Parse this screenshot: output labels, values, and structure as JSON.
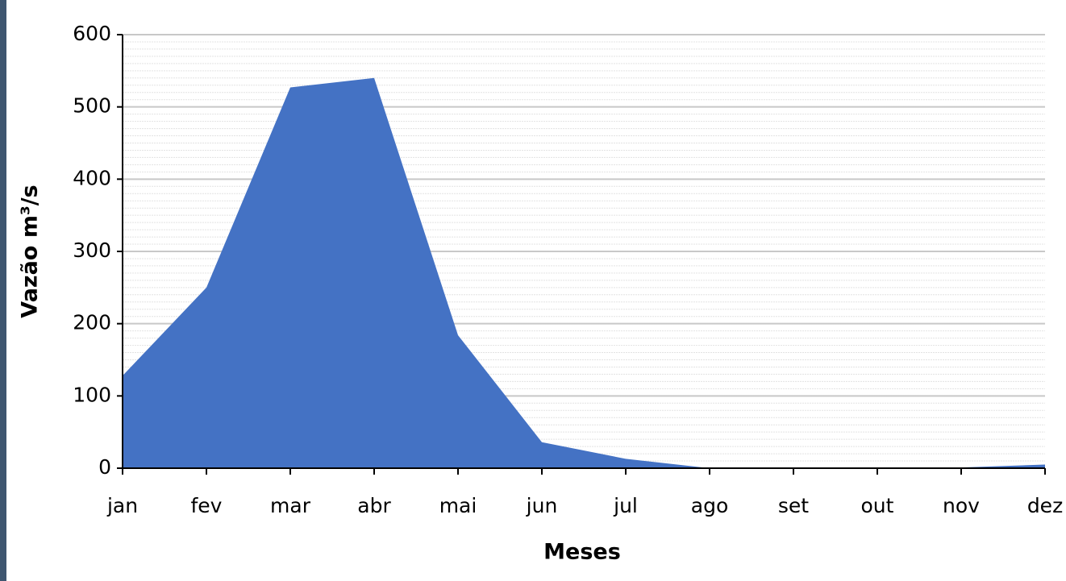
{
  "chart_data": {
    "type": "area",
    "x_label": "Meses",
    "y_label": "Vazão m³/s",
    "categories": [
      "jan",
      "fev",
      "mar",
      "abr",
      "mai",
      "jun",
      "jul",
      "ago",
      "set",
      "out",
      "nov",
      "dez"
    ],
    "values": [
      128,
      250,
      527,
      540,
      184,
      36,
      13,
      0,
      0,
      0,
      1,
      5
    ],
    "color": "#4472c4",
    "ylim": [
      0,
      600
    ],
    "yticks": [
      0,
      100,
      200,
      300,
      400,
      500,
      600
    ],
    "minor_grid_step": 10,
    "grid": true
  }
}
